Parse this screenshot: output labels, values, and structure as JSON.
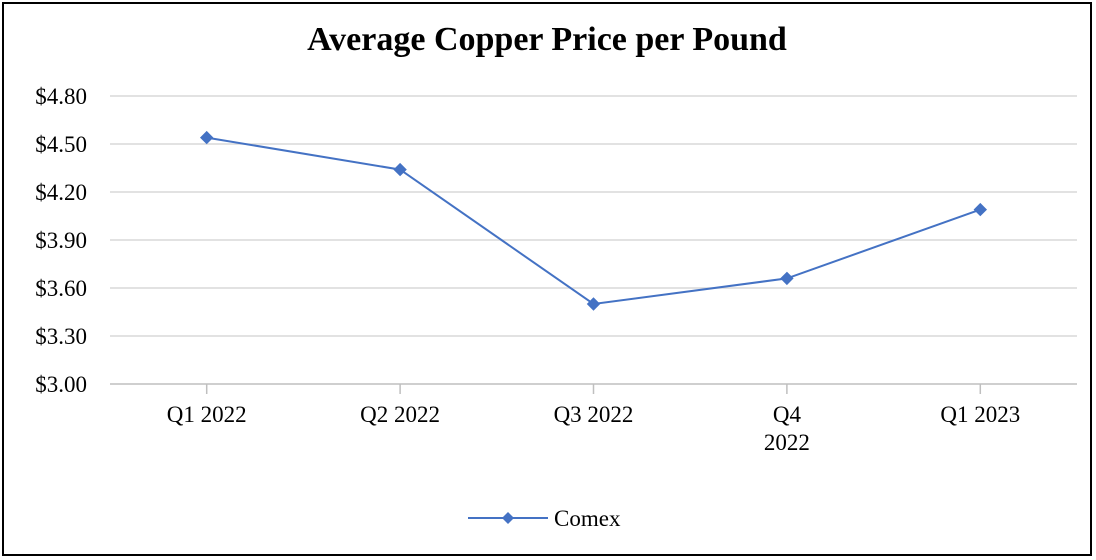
{
  "chart_data": {
    "type": "line",
    "title": "Average Copper Price per Pound",
    "categories": [
      "Q1 2022",
      "Q2 2022",
      "Q3 2022",
      "Q4 2022",
      "Q1 2023"
    ],
    "category_lines": [
      [
        "Q1 2022"
      ],
      [
        "Q2 2022"
      ],
      [
        "Q3 2022"
      ],
      [
        "Q4",
        "2022"
      ],
      [
        "Q1 2023"
      ]
    ],
    "series": [
      {
        "name": "Comex",
        "values": [
          4.54,
          4.34,
          3.5,
          3.66,
          4.09
        ],
        "color": "#4472C4"
      }
    ],
    "ylim": [
      3.0,
      4.8
    ],
    "yticks": [
      3.0,
      3.3,
      3.6,
      3.9,
      4.2,
      4.5,
      4.8
    ],
    "ytick_labels": [
      "$3.00",
      "$3.30",
      "$3.60",
      "$3.90",
      "$4.20",
      "$4.50",
      "$4.80"
    ],
    "xlabel": "",
    "ylabel": "",
    "grid": true,
    "legend": "bottom-center"
  },
  "colors": {
    "series": "#4472C4",
    "grid": "#D9D9D9",
    "axis": "#BFBFBF",
    "text": "#000000"
  }
}
